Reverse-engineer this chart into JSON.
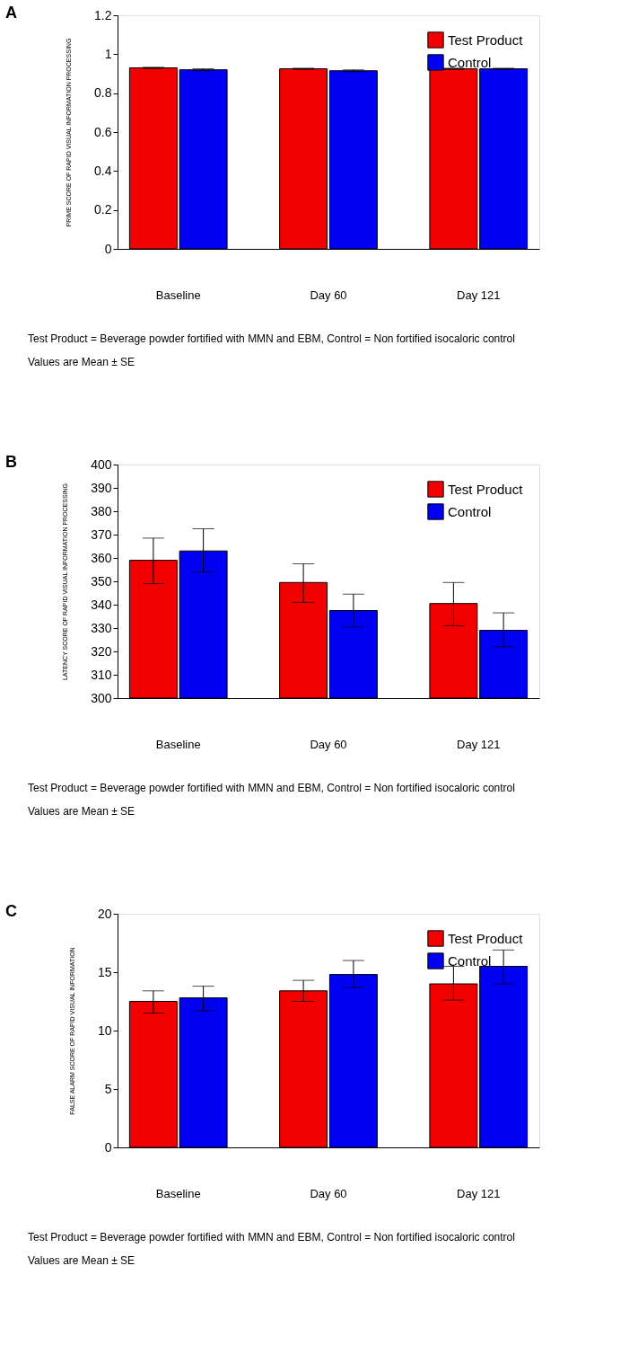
{
  "chart_data": [
    {
      "type": "bar",
      "title": "A",
      "ylabel": "PRIME SCORE OF RAPID VISUAL INFORMATION PROCESSING",
      "categories": [
        "Baseline",
        "Day 60",
        "Day 121"
      ],
      "series": [
        {
          "name": "Test Product",
          "color": "#f20000",
          "values": [
            0.93,
            0.925,
            0.925
          ],
          "errors": [
            0.003,
            0.003,
            0.003
          ]
        },
        {
          "name": "Control",
          "color": "#0000f2",
          "values": [
            0.92,
            0.915,
            0.925
          ],
          "errors": [
            0.005,
            0.005,
            0.003
          ]
        }
      ],
      "ylim": [
        0,
        1.2
      ],
      "yticks": [
        0,
        0.2,
        0.4,
        0.6,
        0.8,
        1,
        1.2
      ],
      "grid": false,
      "legend": "top right",
      "annotations": [
        "Test Product = Beverage powder fortified with MMN and EBM, Control = Non fortified isocaloric control",
        "Values are Mean ± SE"
      ]
    },
    {
      "type": "bar",
      "title": "B",
      "ylabel": "LATENCY SCORE OF RAPID VISUAL INFORMATION PROCESSING",
      "categories": [
        "Baseline",
        "Day 60",
        "Day 121"
      ],
      "series": [
        {
          "name": "Test Product",
          "color": "#f20000",
          "values": [
            359,
            349.5,
            340.5
          ],
          "errors": [
            [
              349,
              368.5
            ],
            [
              341,
              357.5
            ],
            [
              331,
              349.5
            ]
          ]
        },
        {
          "name": "Control",
          "color": "#0000f2",
          "values": [
            363,
            337.5,
            329
          ],
          "errors": [
            [
              354,
              372.5
            ],
            [
              330.5,
              344.5
            ],
            [
              322,
              336.5
            ]
          ]
        }
      ],
      "ylim": [
        300,
        400
      ],
      "yticks": [
        300,
        310,
        320,
        330,
        340,
        350,
        360,
        370,
        380,
        390,
        400
      ],
      "grid": false,
      "legend": "top right",
      "annotations": [
        "Test Product = Beverage powder fortified with MMN and EBM, Control = Non fortified isocaloric control",
        "Values are Mean ± SE"
      ]
    },
    {
      "type": "bar",
      "title": "C",
      "ylabel": "FALSE ALARM SCORE OF RAPID VISUAL INFORMATION",
      "categories": [
        "Baseline",
        "Day 60",
        "Day 121"
      ],
      "series": [
        {
          "name": "Test Product",
          "color": "#f20000",
          "values": [
            12.5,
            13.4,
            14.0
          ],
          "errors": [
            [
              11.5,
              13.4
            ],
            [
              12.5,
              14.3
            ],
            [
              12.6,
              15.5
            ]
          ]
        },
        {
          "name": "Control",
          "color": "#0000f2",
          "values": [
            12.8,
            14.8,
            15.5
          ],
          "errors": [
            [
              11.7,
              13.8
            ],
            [
              13.7,
              16.0
            ],
            [
              14.0,
              16.9
            ]
          ]
        }
      ],
      "ylim": [
        0,
        20
      ],
      "yticks": [
        0,
        5,
        10,
        15,
        20
      ],
      "grid": false,
      "legend": "top right",
      "annotations": [
        "Test Product = Beverage powder fortified with MMN and EBM, Control = Non fortified isocaloric control",
        "Values are Mean ± SE"
      ]
    }
  ]
}
